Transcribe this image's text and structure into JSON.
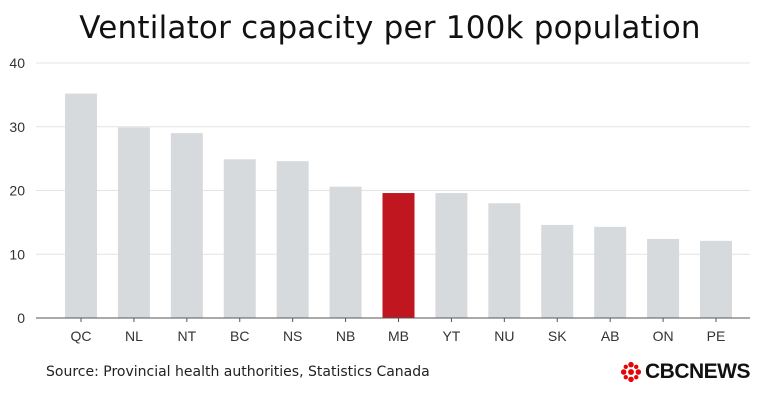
{
  "chart_data": {
    "type": "bar",
    "title": "Ventilator capacity per 100k population",
    "categories": [
      "QC",
      "NL",
      "NT",
      "BC",
      "NS",
      "NB",
      "MB",
      "YT",
      "NU",
      "SK",
      "AB",
      "ON",
      "PE"
    ],
    "values": [
      35.2,
      29.9,
      29.0,
      24.9,
      24.6,
      20.6,
      19.6,
      19.6,
      18.0,
      14.6,
      14.3,
      12.4,
      12.1
    ],
    "highlight": "MB",
    "colors": {
      "bar": "#d7dadd",
      "highlight": "#c0161f",
      "grid": "#e4e4e4",
      "axis": "#555555"
    },
    "xlabel": "",
    "ylabel": "",
    "ylim": [
      0,
      40
    ],
    "yticks": [
      0,
      10,
      20,
      30,
      40
    ],
    "grid": true,
    "legend": "none"
  },
  "footer": {
    "source": "Source: Provincial health authorities, Statistics Canada",
    "logo_text": "CBCNEWS",
    "logo_icon": "cbc-gem-icon"
  }
}
